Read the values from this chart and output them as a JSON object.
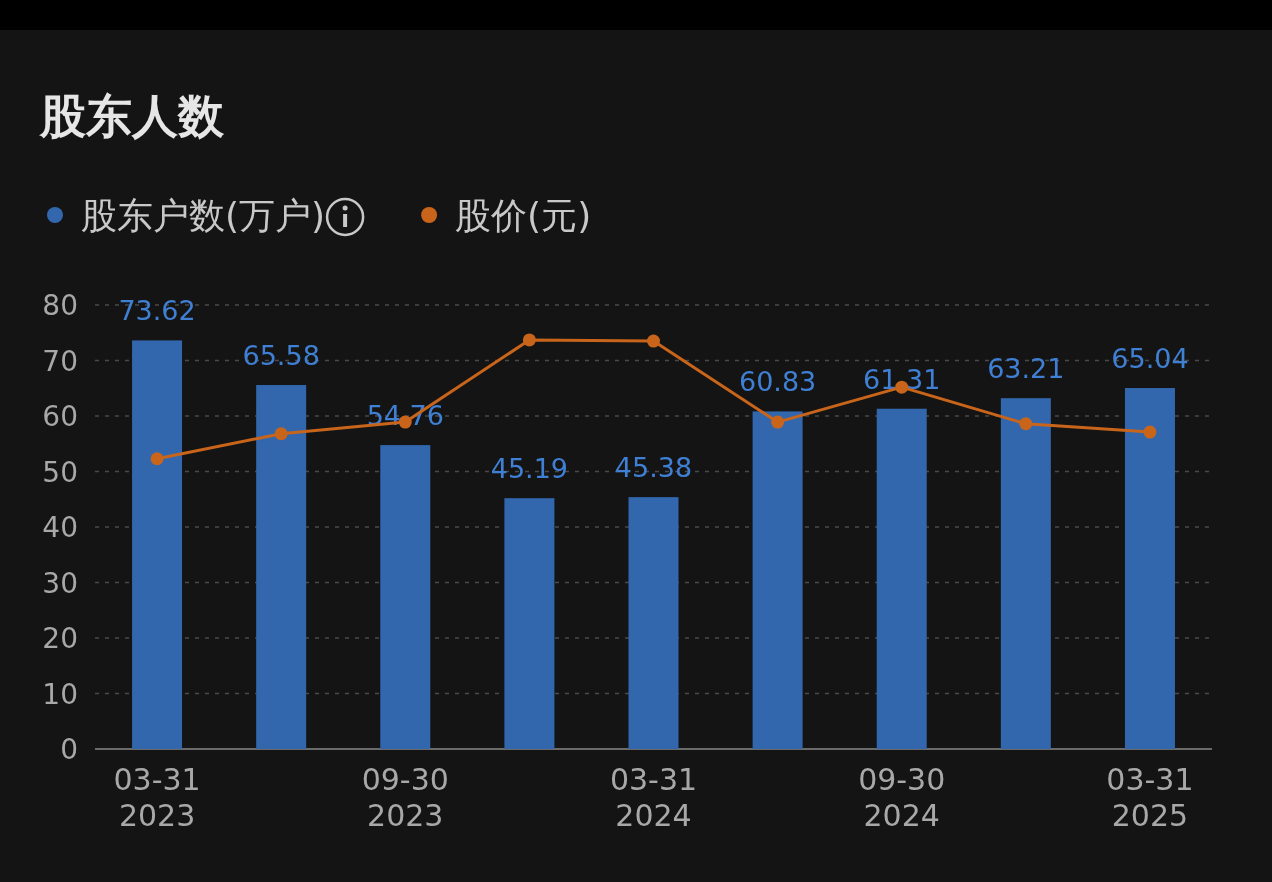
{
  "chart_data": {
    "type": "bar",
    "title": "股东人数",
    "categories": [
      "03-31\n2023",
      null,
      "09-30\n2023",
      null,
      "03-31\n2024",
      null,
      "09-30\n2024",
      null,
      "03-31\n2025"
    ],
    "series": [
      {
        "name": "股东户数(万户)",
        "color": "#3267ae",
        "values": [
          73.62,
          65.58,
          54.76,
          45.19,
          45.38,
          60.83,
          61.31,
          63.21,
          65.04
        ],
        "data_labels": true
      },
      {
        "name": "股价(元)",
        "type": "line",
        "color": "#c8651b",
        "marker": "circle",
        "values": [
          52.3,
          56.8,
          58.9,
          73.7,
          73.5,
          58.9,
          65.2,
          58.6,
          57.1
        ]
      }
    ],
    "ylim": [
      0,
      80
    ],
    "yticks": [
      0,
      10,
      20,
      30,
      40,
      50,
      60,
      70,
      80
    ],
    "grid": "y",
    "legend": "top left"
  }
}
